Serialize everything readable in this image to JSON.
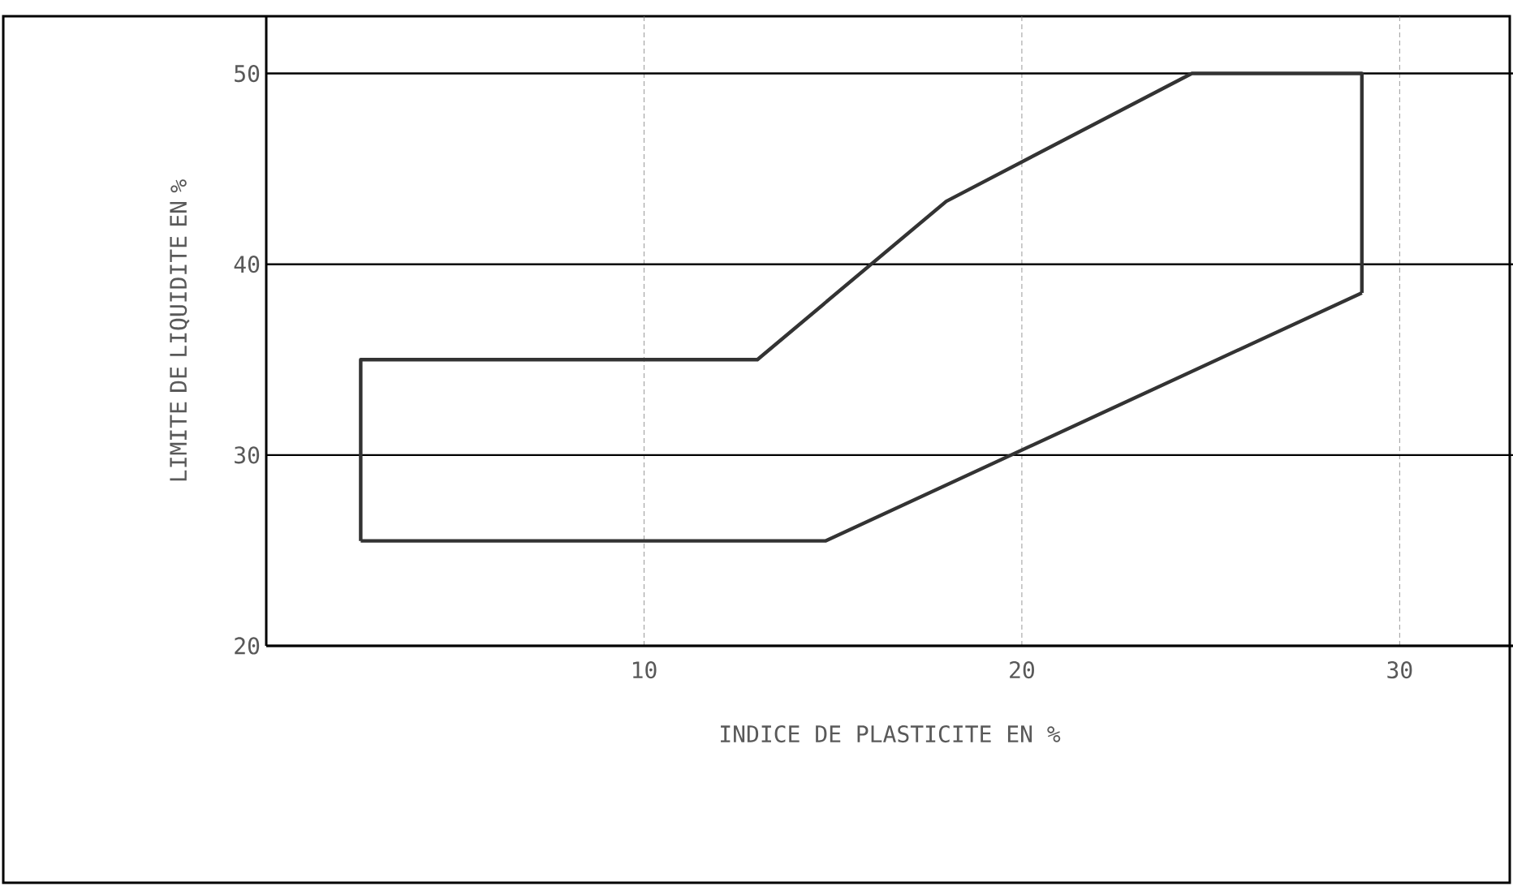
{
  "chart_data": {
    "type": "line",
    "xlabel": "INDICE DE PLASTICITE EN %",
    "ylabel": "LIMITE DE LIQUIDITE EN %",
    "series": [
      {
        "color": "#333333",
        "x": [
          2.5,
          2.5,
          13,
          18,
          24.5,
          29,
          29
        ],
        "values": [
          25.5,
          35,
          35,
          43.3,
          50,
          50,
          38.5
        ]
      },
      {
        "color": "#333333",
        "x": [
          2.5,
          14.8,
          29
        ],
        "values": [
          25.5,
          25.5,
          38.5
        ]
      }
    ],
    "xlim": [
      0,
      33
    ],
    "ylim": [
      20,
      53
    ],
    "xticks": [
      10,
      20,
      30
    ],
    "yticks": [
      20,
      30,
      40,
      50
    ],
    "grid": true,
    "marker": "none",
    "line_style": "solid"
  }
}
